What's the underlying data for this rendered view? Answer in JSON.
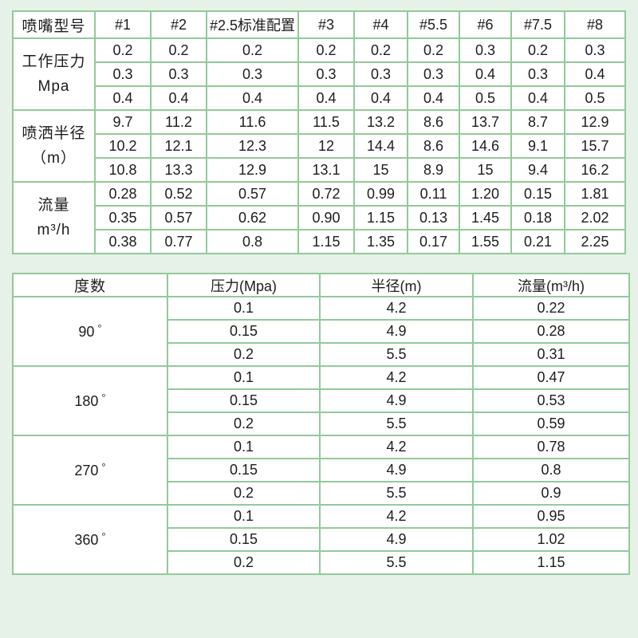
{
  "colors": {
    "background": "#e6f1e7",
    "grid_border": "#93c99b",
    "cell_background": "#ffffff",
    "text": "#1d1d1d"
  },
  "nozzle_table": {
    "corner_label": "喷嘴型号",
    "models": [
      "#1",
      "#2",
      "#2.5标准配置",
      "#3",
      "#4",
      "#5.5",
      "#6",
      "#7.5",
      "#8"
    ],
    "row_groups": [
      {
        "label_lines": [
          "工作压力",
          "Mpa"
        ],
        "rows": [
          [
            "0.2",
            "0.2",
            "0.2",
            "0.2",
            "0.2",
            "0.2",
            "0.3",
            "0.2",
            "0.3"
          ],
          [
            "0.3",
            "0.3",
            "0.3",
            "0.3",
            "0.3",
            "0.3",
            "0.4",
            "0.3",
            "0.4"
          ],
          [
            "0.4",
            "0.4",
            "0.4",
            "0.4",
            "0.4",
            "0.4",
            "0.5",
            "0.4",
            "0.5"
          ]
        ]
      },
      {
        "label_lines": [
          "喷洒半径",
          "（m）"
        ],
        "rows": [
          [
            "9.7",
            "11.2",
            "11.6",
            "11.5",
            "13.2",
            "8.6",
            "13.7",
            "8.7",
            "12.9"
          ],
          [
            "10.2",
            "12.1",
            "12.3",
            "12",
            "14.4",
            "8.6",
            "14.6",
            "9.1",
            "15.7"
          ],
          [
            "10.8",
            "13.3",
            "12.9",
            "13.1",
            "15",
            "8.9",
            "15",
            "9.4",
            "16.2"
          ]
        ]
      },
      {
        "label_lines": [
          "流量",
          "m³/h"
        ],
        "rows": [
          [
            "0.28",
            "0.52",
            "0.57",
            "0.72",
            "0.99",
            "0.11",
            "1.20",
            "0.15",
            "1.81"
          ],
          [
            "0.35",
            "0.57",
            "0.62",
            "0.90",
            "1.15",
            "0.13",
            "1.45",
            "0.18",
            "2.02"
          ],
          [
            "0.38",
            "0.77",
            "0.8",
            "1.15",
            "1.35",
            "0.17",
            "1.55",
            "0.21",
            "2.25"
          ]
        ]
      }
    ]
  },
  "angle_table": {
    "headers": [
      "度数",
      "压力(Mpa)",
      "半径(m)",
      "流量(m³/h)"
    ],
    "degree_symbol": "°",
    "groups": [
      {
        "angle_value": "90",
        "rows": [
          [
            "0.1",
            "4.2",
            "0.22"
          ],
          [
            "0.15",
            "4.9",
            "0.28"
          ],
          [
            "0.2",
            "5.5",
            "0.31"
          ]
        ]
      },
      {
        "angle_value": "180",
        "rows": [
          [
            "0.1",
            "4.2",
            "0.47"
          ],
          [
            "0.15",
            "4.9",
            "0.53"
          ],
          [
            "0.2",
            "5.5",
            "0.59"
          ]
        ]
      },
      {
        "angle_value": "270",
        "rows": [
          [
            "0.1",
            "4.2",
            "0.78"
          ],
          [
            "0.15",
            "4.9",
            "0.8"
          ],
          [
            "0.2",
            "5.5",
            "0.9"
          ]
        ]
      },
      {
        "angle_value": "360",
        "rows": [
          [
            "0.1",
            "4.2",
            "0.95"
          ],
          [
            "0.15",
            "4.9",
            "1.02"
          ],
          [
            "0.2",
            "5.5",
            "1.15"
          ]
        ]
      }
    ]
  }
}
